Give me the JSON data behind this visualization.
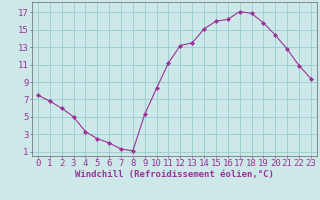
{
  "x": [
    0,
    1,
    2,
    3,
    4,
    5,
    6,
    7,
    8,
    9,
    10,
    11,
    12,
    13,
    14,
    15,
    16,
    17,
    18,
    19,
    20,
    21,
    22,
    23
  ],
  "y": [
    7.5,
    6.8,
    6.0,
    5.0,
    3.3,
    2.5,
    2.0,
    1.3,
    1.1,
    5.3,
    8.3,
    11.2,
    13.2,
    13.5,
    15.1,
    16.0,
    16.2,
    17.1,
    16.9,
    15.8,
    14.4,
    12.8,
    10.9,
    9.4
  ],
  "line_color": "#993399",
  "marker": "D",
  "marker_size": 2.0,
  "bg_color": "#cce8e8",
  "grid_color": "#99cccc",
  "axis_color": "#993399",
  "tick_label_color": "#993399",
  "xlabel": "Windchill (Refroidissement éolien,°C)",
  "ylabel_ticks": [
    1,
    3,
    5,
    7,
    9,
    11,
    13,
    15,
    17
  ],
  "xlim": [
    -0.5,
    23.5
  ],
  "ylim": [
    0.5,
    18.2
  ],
  "xtick_labels": [
    "0",
    "1",
    "2",
    "3",
    "4",
    "5",
    "6",
    "7",
    "8",
    "9",
    "10",
    "11",
    "12",
    "13",
    "14",
    "15",
    "16",
    "17",
    "18",
    "19",
    "20",
    "21",
    "22",
    "23"
  ],
  "font_size_axis": 6.5,
  "font_size_ticks": 6.5
}
